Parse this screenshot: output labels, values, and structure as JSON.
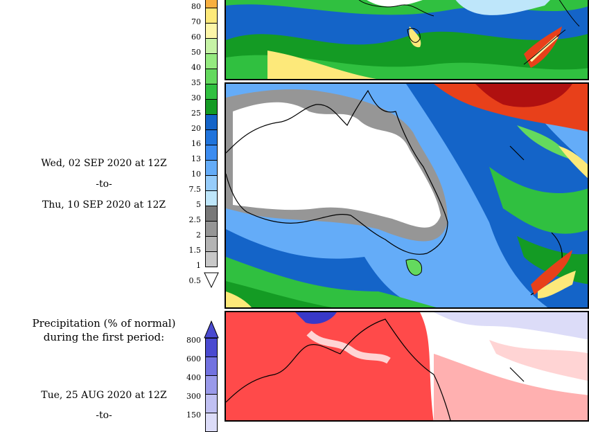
{
  "precip_colorbar": {
    "labels": [
      "80",
      "70",
      "60",
      "50",
      "40",
      "35",
      "30",
      "25",
      "20",
      "16",
      "13",
      "10",
      "7.5",
      "5",
      "2.5",
      "2",
      "1.5",
      "1",
      "0.5"
    ],
    "colors": [
      "#f8b040",
      "#fde97a",
      "#fdf6a8",
      "#c6f3a6",
      "#95ea80",
      "#64d95e",
      "#30c040",
      "#149b24",
      "#1464c8",
      "#2074dc",
      "#3c8cf0",
      "#64acf8",
      "#96ccfa",
      "#bee6fa",
      "#787878",
      "#969696",
      "#b4b4b4",
      "#c8c8c8",
      "#ffffff"
    ]
  },
  "period_label": {
    "start": "Wed, 02 SEP 2020 at 12Z",
    "sep": "-to-",
    "end": "Thu, 10 SEP 2020 at 12Z"
  },
  "normal_section": {
    "title_line1": "Precipitation (% of normal)",
    "title_line2": "during the first period:",
    "start": "Tue, 25 AUG 2020 at 12Z",
    "sep": "-to-"
  },
  "normal_colorbar": {
    "labels": [
      "800",
      "600",
      "400",
      "300",
      "150"
    ],
    "colors": [
      "#4a4ad0",
      "#7272e0",
      "#9a9aea",
      "#c0c0f2",
      "#dcdcf8"
    ]
  },
  "colors": {
    "dry": "#ff4a4a",
    "wet": "#3838c8",
    "land": "#ffffff"
  }
}
